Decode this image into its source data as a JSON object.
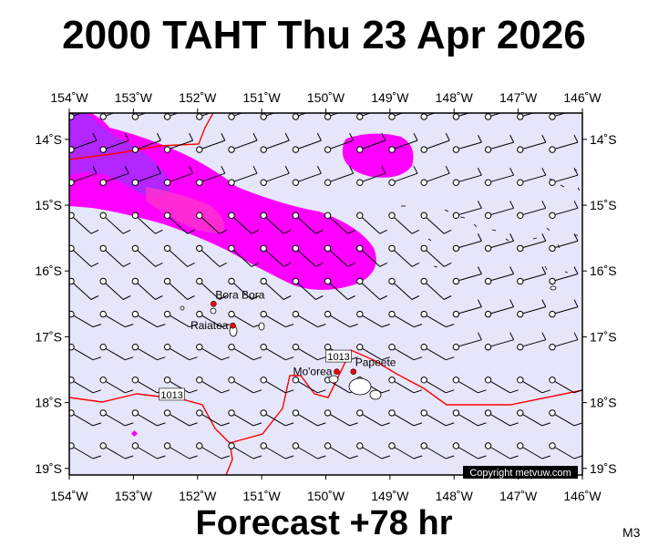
{
  "title": "2000 TAHT Thu 23 Apr 2026",
  "forecast_label": "Forecast +78 hr",
  "model_label": "M3",
  "copyright": "Copyright metvuw.com",
  "colors": {
    "ocean": "#e6e6fa",
    "rain_heavy": "#ff00ff",
    "rain_core": "#9933ff",
    "isobar": "#ff0000",
    "land": "#ffffff"
  },
  "map": {
    "lon_min": -154,
    "lon_max": -146,
    "lat_min": -19.1,
    "lat_max": -13.6,
    "lon_ticks": [
      {
        "value": -154,
        "label": "154˚W"
      },
      {
        "value": -153,
        "label": "153˚W"
      },
      {
        "value": -152,
        "label": "152˚W"
      },
      {
        "value": -151,
        "label": "151˚W"
      },
      {
        "value": -150,
        "label": "150˚W"
      },
      {
        "value": -149,
        "label": "149˚W"
      },
      {
        "value": -148,
        "label": "148˚W"
      },
      {
        "value": -147,
        "label": "147˚W"
      },
      {
        "value": -146,
        "label": "146˚W"
      }
    ],
    "lat_ticks": [
      {
        "value": -14,
        "label": "14˚S"
      },
      {
        "value": -15,
        "label": "15˚S"
      },
      {
        "value": -16,
        "label": "16˚S"
      },
      {
        "value": -17,
        "label": "17˚S"
      },
      {
        "value": -18,
        "label": "18˚S"
      },
      {
        "value": -19,
        "label": "19˚S"
      }
    ],
    "places": [
      {
        "name": "Bora Bora",
        "lon": -151.75,
        "lat": -16.5
      },
      {
        "name": "Raiatea",
        "lon": -151.45,
        "lat": -16.83
      },
      {
        "name": "Mo'orea",
        "lon": -149.83,
        "lat": -17.53
      },
      {
        "name": "Papeete",
        "lon": -149.57,
        "lat": -17.53
      }
    ],
    "isobar_labels": [
      {
        "text": "1013",
        "lon": -149.8,
        "lat": -17.3
      },
      {
        "text": "1013",
        "lon": -152.4,
        "lat": -17.88
      }
    ]
  }
}
